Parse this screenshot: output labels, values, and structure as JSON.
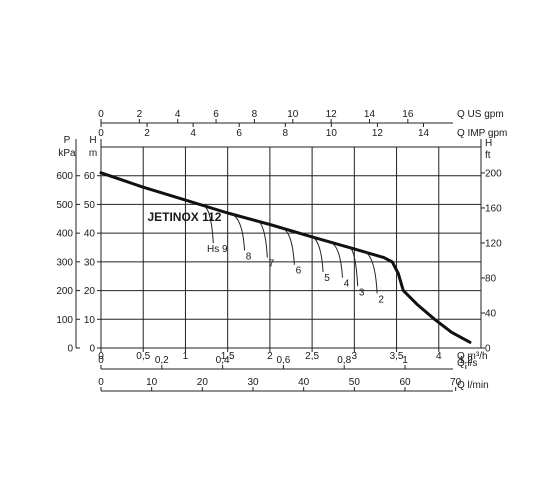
{
  "chart_data": {
    "type": "line",
    "title": "JETINOX 112",
    "x_primary": {
      "label": "Q m³/h",
      "ticks": [
        "0",
        "0,5",
        "1",
        "1,5",
        "2",
        "2,5",
        "3",
        "3,5",
        "4"
      ],
      "range": [
        0,
        4.5
      ]
    },
    "x_secondary": [
      {
        "label": "Q l/s",
        "ticks": [
          {
            "v": 0,
            "t": "0"
          },
          {
            "v": 0.2,
            "t": "0,2"
          },
          {
            "v": 0.4,
            "t": "0,4"
          },
          {
            "v": 0.6,
            "t": "0,6"
          },
          {
            "v": 0.8,
            "t": "0,8"
          },
          {
            "v": 1,
            "t": "1"
          },
          {
            "v": 1.2,
            "t": "1,2"
          }
        ],
        "factor": 3.6
      },
      {
        "label": "Q l/min",
        "ticks": [
          {
            "v": 0,
            "t": "0"
          },
          {
            "v": 10,
            "t": "10"
          },
          {
            "v": 20,
            "t": "20"
          },
          {
            "v": 30,
            "t": "30"
          },
          {
            "v": 40,
            "t": "40"
          },
          {
            "v": 50,
            "t": "50"
          },
          {
            "v": 60,
            "t": "60"
          },
          {
            "v": 70,
            "t": "70"
          }
        ],
        "factor": 0.06
      }
    ],
    "x_top": [
      {
        "label": "Q US gpm",
        "ticks": [
          {
            "v": 0,
            "t": "0"
          },
          {
            "v": 2,
            "t": "2"
          },
          {
            "v": 4,
            "t": "4"
          },
          {
            "v": 6,
            "t": "6"
          },
          {
            "v": 8,
            "t": "8"
          },
          {
            "v": 10,
            "t": "10"
          },
          {
            "v": 12,
            "t": "12"
          },
          {
            "v": 14,
            "t": "14"
          },
          {
            "v": 16,
            "t": "16"
          }
        ],
        "factor": 0.2271
      },
      {
        "label": "Q IMP gpm",
        "ticks": [
          {
            "v": 0,
            "t": "0"
          },
          {
            "v": 2,
            "t": "2"
          },
          {
            "v": 4,
            "t": "4"
          },
          {
            "v": 6,
            "t": "6"
          },
          {
            "v": 8,
            "t": "8"
          },
          {
            "v": 10,
            "t": "10"
          },
          {
            "v": 12,
            "t": "12"
          },
          {
            "v": 14,
            "t": "14"
          }
        ],
        "factor": 0.2728
      }
    ],
    "y_primary": {
      "label_top": "H",
      "label_unit": "m",
      "ticks": [
        "0",
        "10",
        "20",
        "30",
        "40",
        "50",
        "60"
      ],
      "range": [
        0,
        70
      ]
    },
    "y_left_kpa": {
      "label_top": "P",
      "label_unit": "kPa",
      "ticks": [
        {
          "v": 0,
          "t": "0"
        },
        {
          "v": 100,
          "t": "100"
        },
        {
          "v": 200,
          "t": "200"
        },
        {
          "v": 300,
          "t": "300"
        },
        {
          "v": 400,
          "t": "400"
        },
        {
          "v": 500,
          "t": "500"
        },
        {
          "v": 600,
          "t": "600"
        }
      ],
      "factor": 0.1
    },
    "y_right_ft": {
      "label_top": "H",
      "label_unit": "ft",
      "ticks": [
        {
          "v": 0,
          "t": "0"
        },
        {
          "v": 40,
          "t": "40"
        },
        {
          "v": 80,
          "t": "80"
        },
        {
          "v": 120,
          "t": "120"
        },
        {
          "v": 160,
          "t": "160"
        },
        {
          "v": 200,
          "t": "200"
        }
      ],
      "factor": 0.3048
    },
    "series": [
      {
        "values": [
          {
            "x": 0,
            "y": 61
          },
          {
            "x": 0.5,
            "y": 56
          },
          {
            "x": 1,
            "y": 51.5
          },
          {
            "x": 1.5,
            "y": 47
          },
          {
            "x": 2,
            "y": 43
          },
          {
            "x": 2.5,
            "y": 38.7
          },
          {
            "x": 3,
            "y": 34.5
          },
          {
            "x": 3.35,
            "y": 31.5
          },
          {
            "x": 3.45,
            "y": 30
          },
          {
            "x": 3.52,
            "y": 26
          },
          {
            "x": 3.58,
            "y": 20
          },
          {
            "x": 3.75,
            "y": 15
          },
          {
            "x": 3.95,
            "y": 10
          },
          {
            "x": 4.15,
            "y": 5.5
          },
          {
            "x": 4.37,
            "y": 2
          }
        ]
      }
    ],
    "suction_curves": [
      {
        "label": "Hs 9",
        "start": {
          "x": 1.22,
          "y": 49.5
        },
        "end": {
          "x": 1.33,
          "y": 36.5
        }
      },
      {
        "label": "8",
        "start": {
          "x": 1.55,
          "y": 46.5
        },
        "end": {
          "x": 1.7,
          "y": 34
        }
      },
      {
        "label": "7",
        "start": {
          "x": 1.85,
          "y": 44.5
        },
        "end": {
          "x": 1.97,
          "y": 31.5
        }
      },
      {
        "label": "6",
        "start": {
          "x": 2.15,
          "y": 41.7
        },
        "end": {
          "x": 2.29,
          "y": 29
        }
      },
      {
        "label": "5",
        "start": {
          "x": 2.5,
          "y": 38.7
        },
        "end": {
          "x": 2.63,
          "y": 26.5
        }
      },
      {
        "label": "4",
        "start": {
          "x": 2.73,
          "y": 36.5
        },
        "end": {
          "x": 2.86,
          "y": 24.5
        }
      },
      {
        "label": "3",
        "start": {
          "x": 2.95,
          "y": 34.9
        },
        "end": {
          "x": 3.04,
          "y": 21.5
        }
      },
      {
        "label": "2",
        "start": {
          "x": 3.12,
          "y": 33.5
        },
        "end": {
          "x": 3.27,
          "y": 19
        }
      }
    ],
    "grid": true
  }
}
